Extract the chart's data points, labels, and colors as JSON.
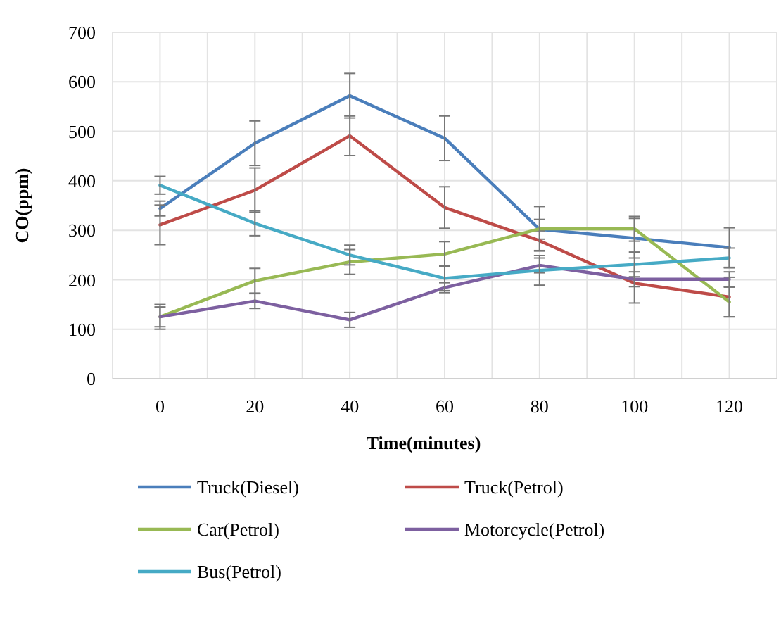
{
  "chart_data": {
    "type": "line",
    "xlabel": "Time(minutes)",
    "ylabel": "CO(ppm)",
    "x": [
      0,
      20,
      40,
      60,
      80,
      100,
      120
    ],
    "xlim": [
      -10,
      130
    ],
    "xticks": [
      {
        "value": -10,
        "label": null
      },
      0,
      {
        "value": 10,
        "label": null
      },
      20,
      {
        "value": 30,
        "label": null
      },
      40,
      {
        "value": 50,
        "label": null
      },
      60,
      {
        "value": 70,
        "label": null
      },
      80,
      {
        "value": 90,
        "label": null
      },
      100,
      {
        "value": 110,
        "label": null
      },
      120,
      {
        "value": 130,
        "label": null
      }
    ],
    "ylim": [
      0,
      700
    ],
    "yticks": [
      0,
      100,
      200,
      300,
      400,
      500,
      600,
      700
    ],
    "grid": true,
    "legend": "bottom",
    "marker": "none",
    "line_style": "solid",
    "series": [
      {
        "name": "Truck(Diesel)",
        "color": "#4a7ebb",
        "values": [
          344,
          476,
          572,
          486,
          302,
          284,
          265
        ],
        "errors": [
          15,
          45,
          45,
          45,
          20,
          40,
          40
        ]
      },
      {
        "name": "Truck(Petrol)",
        "color": "#be4b48",
        "values": [
          311,
          381,
          491,
          346,
          279,
          193,
          165
        ],
        "errors": [
          40,
          45,
          40,
          42,
          20,
          40,
          40
        ]
      },
      {
        "name": "Car(Petrol)",
        "color": "#98b954",
        "values": [
          125,
          198,
          236,
          252,
          303,
          303,
          155
        ],
        "errors": [
          25,
          25,
          25,
          25,
          45,
          25,
          30
        ]
      },
      {
        "name": "Motorcycle(Petrol)",
        "color": "#7d60a0",
        "values": [
          125,
          157,
          119,
          184,
          229,
          201,
          201
        ],
        "errors": [
          20,
          15,
          15,
          10,
          15,
          15,
          15
        ]
      },
      {
        "name": "Bus(Petrol)",
        "color": "#46aac5",
        "values": [
          391,
          314,
          250,
          203,
          219,
          231,
          244
        ],
        "errors": [
          18,
          25,
          20,
          25,
          30,
          25,
          20
        ]
      }
    ]
  }
}
